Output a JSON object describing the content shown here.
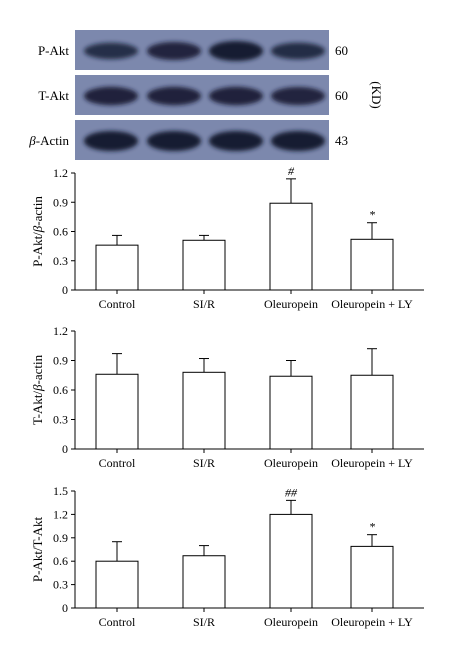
{
  "blot": {
    "rows": [
      {
        "label_parts": [
          {
            "text": "P-Akt",
            "italic": false
          }
        ],
        "kd": "60",
        "bands": [
          0.55,
          0.75,
          1.0,
          0.6
        ]
      },
      {
        "label_parts": [
          {
            "text": "T-Akt",
            "italic": false
          }
        ],
        "kd": "60",
        "bands": [
          0.8,
          0.8,
          0.8,
          0.75
        ]
      },
      {
        "label_parts": [
          {
            "text": "β",
            "italic": true
          },
          {
            "text": "-Actin",
            "italic": false
          }
        ],
        "kd": "43",
        "bands": [
          1.0,
          1.0,
          1.0,
          1.0
        ]
      }
    ],
    "kd_unit": "(KD)",
    "colors": {
      "panel": "#7c88ad",
      "band": "#141a30"
    }
  },
  "chart_data": [
    {
      "type": "bar",
      "categories": [
        "Control",
        "SI/R",
        "Oleuropein",
        "Oleuropein + LY"
      ],
      "series": [
        {
          "values": [
            0.46,
            0.51,
            0.89,
            0.52
          ],
          "errors": [
            0.1,
            0.05,
            0.25,
            0.17
          ]
        }
      ],
      "significance": [
        "",
        "",
        "#",
        "*"
      ],
      "ylabel_parts": [
        {
          "text": "P-Akt/",
          "italic": false
        },
        {
          "text": "β",
          "italic": true
        },
        {
          "text": "-actin",
          "italic": false
        }
      ],
      "ylim": [
        0,
        1.2
      ],
      "yticks": [
        "0",
        "0.3",
        "0.6",
        "0.9",
        "1.2"
      ]
    },
    {
      "type": "bar",
      "categories": [
        "Control",
        "SI/R",
        "Oleuropein",
        "Oleuropein + LY"
      ],
      "series": [
        {
          "values": [
            0.76,
            0.78,
            0.74,
            0.75
          ],
          "errors": [
            0.21,
            0.14,
            0.16,
            0.27
          ]
        }
      ],
      "significance": [
        "",
        "",
        "",
        ""
      ],
      "ylabel_parts": [
        {
          "text": "T-Akt/",
          "italic": false
        },
        {
          "text": "β",
          "italic": true
        },
        {
          "text": "-actin",
          "italic": false
        }
      ],
      "ylim": [
        0,
        1.2
      ],
      "yticks": [
        "0",
        "0.3",
        "0.6",
        "0.9",
        "1.2"
      ]
    },
    {
      "type": "bar",
      "categories": [
        "Control",
        "SI/R",
        "Oleuropein",
        "Oleuropein + LY"
      ],
      "series": [
        {
          "values": [
            0.6,
            0.67,
            1.2,
            0.79
          ],
          "errors": [
            0.25,
            0.13,
            0.18,
            0.15
          ]
        }
      ],
      "significance": [
        "",
        "",
        "##",
        "*"
      ],
      "ylabel_parts": [
        {
          "text": "P-Akt/T-Akt",
          "italic": false
        }
      ],
      "ylim": [
        0,
        1.5
      ],
      "yticks": [
        "0",
        "0.3",
        "0.6",
        "0.9",
        "1.2",
        "1.5"
      ]
    }
  ]
}
